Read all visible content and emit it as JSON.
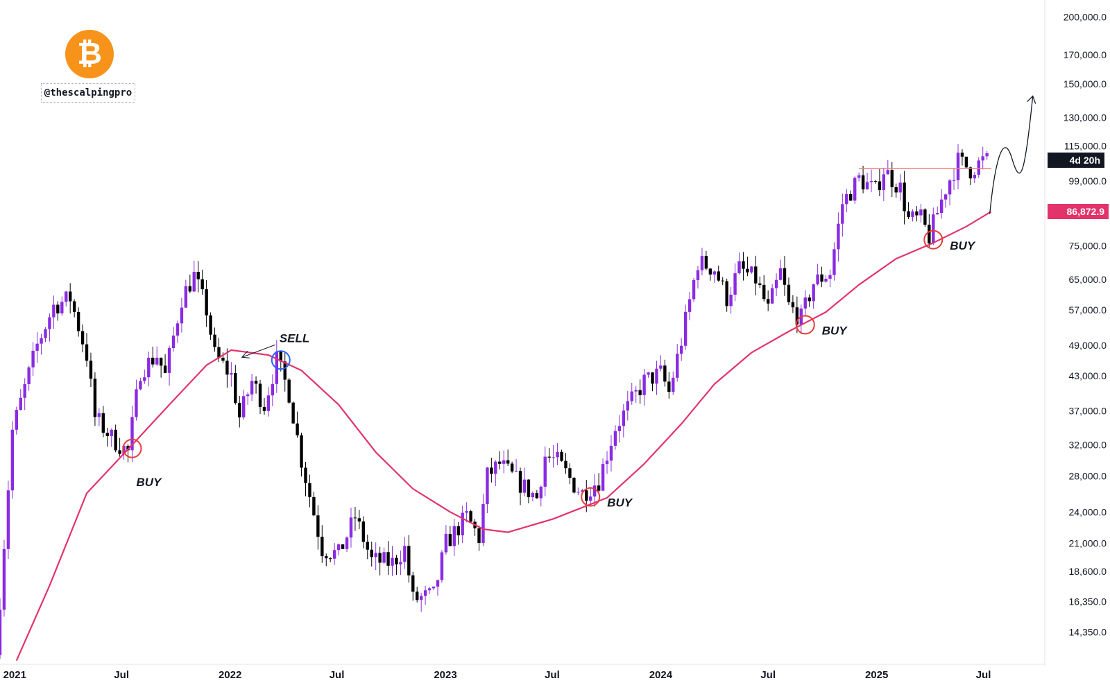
{
  "branding": {
    "handle": "@thescalpingpro",
    "logo_icon": "bitcoin-icon",
    "logo_glyph": "₿",
    "logo_color": "#f7931a"
  },
  "price_badges": {
    "countdown": "4d 20h",
    "moving_average": "86,872.9"
  },
  "chart_data": {
    "type": "candlestick",
    "y_scale": "log",
    "ylim": [
      12500,
      215000
    ],
    "xlim": [
      "2020-12-07",
      "2025-10-13"
    ],
    "y_ticks": [
      {
        "value": 200000,
        "label": "200,000.0"
      },
      {
        "value": 170000,
        "label": "170,000.0"
      },
      {
        "value": 150000,
        "label": "150,000.0"
      },
      {
        "value": 130000,
        "label": "130,000.0"
      },
      {
        "value": 115000,
        "label": "115,000.0"
      },
      {
        "value": 99000,
        "label": "99,000.0"
      },
      {
        "value": 75000,
        "label": "75,000.0"
      },
      {
        "value": 65000,
        "label": "65,000.0"
      },
      {
        "value": 57000,
        "label": "57,000.0"
      },
      {
        "value": 49000,
        "label": "49,000.0"
      },
      {
        "value": 43000,
        "label": "43,000.0"
      },
      {
        "value": 37000,
        "label": "37,000.0"
      },
      {
        "value": 32000,
        "label": "32,000.0"
      },
      {
        "value": 28000,
        "label": "28,000.0"
      },
      {
        "value": 24000,
        "label": "24,000.0"
      },
      {
        "value": 21000,
        "label": "21,000.0"
      },
      {
        "value": 18600,
        "label": "18,600.0"
      },
      {
        "value": 16350,
        "label": "16,350.0"
      },
      {
        "value": 14350,
        "label": "14,350.0"
      }
    ],
    "x_ticks": [
      {
        "date": "2021-01-01",
        "label": "2021",
        "bold": true
      },
      {
        "date": "2021-07-01",
        "label": "Jul",
        "bold": false
      },
      {
        "date": "2022-01-01",
        "label": "2022",
        "bold": true
      },
      {
        "date": "2022-07-01",
        "label": "Jul",
        "bold": false
      },
      {
        "date": "2023-01-01",
        "label": "2023",
        "bold": true
      },
      {
        "date": "2023-07-01",
        "label": "Jul",
        "bold": false
      },
      {
        "date": "2024-01-01",
        "label": "2024",
        "bold": true
      },
      {
        "date": "2024-07-01",
        "label": "Jul",
        "bold": false
      },
      {
        "date": "2025-01-01",
        "label": "2025",
        "bold": true
      },
      {
        "date": "2025-07-01",
        "label": "Jul",
        "bold": false
      }
    ],
    "colors": {
      "up": "#8a2be2",
      "down": "#000000",
      "ma": "#e2336b",
      "resistance": "#f08080",
      "buy_circle": "#e83a3a",
      "sell_circle": "#2962ff"
    },
    "price_path": [
      [
        "2020-12-07",
        13000
      ],
      [
        "2021-01-04",
        34000
      ],
      [
        "2021-02-15",
        49000
      ],
      [
        "2021-03-15",
        58000
      ],
      [
        "2021-04-12",
        60000
      ],
      [
        "2021-05-10",
        47000
      ],
      [
        "2021-05-24",
        36000
      ],
      [
        "2021-06-21",
        33000
      ],
      [
        "2021-07-19",
        31000
      ],
      [
        "2021-08-09",
        44000
      ],
      [
        "2021-09-06",
        47000
      ],
      [
        "2021-09-20",
        43000
      ],
      [
        "2021-10-18",
        60000
      ],
      [
        "2021-11-08",
        66000
      ],
      [
        "2021-11-29",
        57000
      ],
      [
        "2021-12-13",
        47000
      ],
      [
        "2022-01-10",
        43000
      ],
      [
        "2022-01-24",
        36000
      ],
      [
        "2022-02-14",
        42000
      ],
      [
        "2022-03-07",
        38000
      ],
      [
        "2022-03-28",
        46000
      ],
      [
        "2022-04-18",
        40000
      ],
      [
        "2022-05-09",
        30000
      ],
      [
        "2022-06-13",
        20500
      ],
      [
        "2022-07-11",
        20000
      ],
      [
        "2022-08-08",
        23500
      ],
      [
        "2022-09-05",
        19500
      ],
      [
        "2022-10-10",
        19300
      ],
      [
        "2022-10-31",
        20500
      ],
      [
        "2022-11-14",
        16500
      ],
      [
        "2022-12-19",
        16800
      ],
      [
        "2023-01-09",
        21000
      ],
      [
        "2023-02-13",
        23500
      ],
      [
        "2023-03-06",
        21500
      ],
      [
        "2023-03-20",
        28000
      ],
      [
        "2023-04-10",
        29500
      ],
      [
        "2023-05-08",
        27500
      ],
      [
        "2023-06-12",
        25500
      ],
      [
        "2023-06-26",
        30500
      ],
      [
        "2023-07-17",
        29800
      ],
      [
        "2023-08-14",
        27000
      ],
      [
        "2023-08-28",
        26000
      ],
      [
        "2023-09-25",
        27500
      ],
      [
        "2023-10-23",
        34500
      ],
      [
        "2023-11-13",
        37500
      ],
      [
        "2023-12-11",
        42000
      ],
      [
        "2024-01-08",
        43500
      ],
      [
        "2024-01-22",
        40000
      ],
      [
        "2024-02-12",
        50000
      ],
      [
        "2024-03-11",
        70000
      ],
      [
        "2024-04-08",
        68000
      ],
      [
        "2024-04-29",
        60000
      ],
      [
        "2024-05-20",
        68000
      ],
      [
        "2024-06-17",
        65000
      ],
      [
        "2024-07-08",
        57000
      ],
      [
        "2024-07-29",
        67000
      ],
      [
        "2024-08-12",
        58000
      ],
      [
        "2024-09-02",
        55000
      ],
      [
        "2024-09-23",
        64000
      ],
      [
        "2024-10-21",
        67000
      ],
      [
        "2024-11-11",
        90000
      ],
      [
        "2024-12-09",
        100000
      ],
      [
        "2025-01-06",
        95000
      ],
      [
        "2025-01-20",
        104000
      ],
      [
        "2025-02-17",
        96000
      ],
      [
        "2025-03-03",
        84000
      ],
      [
        "2025-03-24",
        84000
      ],
      [
        "2025-04-07",
        78000
      ],
      [
        "2025-05-05",
        96000
      ],
      [
        "2025-05-26",
        108000
      ],
      [
        "2025-06-16",
        104000
      ],
      [
        "2025-07-07",
        108000
      ]
    ],
    "moving_average": [
      [
        "2021-01-04",
        12700
      ],
      [
        "2021-03-01",
        17500
      ],
      [
        "2021-05-03",
        26000
      ],
      [
        "2021-07-19",
        32000
      ],
      [
        "2021-09-20",
        38000
      ],
      [
        "2021-11-22",
        45000
      ],
      [
        "2022-01-03",
        48000
      ],
      [
        "2022-03-07",
        47000
      ],
      [
        "2022-05-02",
        44000
      ],
      [
        "2022-07-04",
        38000
      ],
      [
        "2022-09-05",
        31000
      ],
      [
        "2022-11-07",
        26500
      ],
      [
        "2023-01-09",
        24000
      ],
      [
        "2023-03-06",
        22300
      ],
      [
        "2023-04-17",
        22000
      ],
      [
        "2023-07-03",
        23300
      ],
      [
        "2023-10-02",
        25500
      ],
      [
        "2023-12-04",
        29500
      ],
      [
        "2024-02-05",
        35000
      ],
      [
        "2024-04-01",
        41500
      ],
      [
        "2024-06-03",
        47500
      ],
      [
        "2024-08-05",
        52000
      ],
      [
        "2024-10-07",
        56500
      ],
      [
        "2024-12-02",
        63500
      ],
      [
        "2025-02-03",
        71000
      ],
      [
        "2025-04-07",
        76000
      ],
      [
        "2025-06-02",
        81500
      ],
      [
        "2025-07-14",
        86872.9
      ]
    ],
    "resistance_line": {
      "from": "2024-12-02",
      "to": "2025-07-14",
      "value": 104500
    },
    "annotations": [
      {
        "type": "buy",
        "label": "BUY",
        "date": "2021-07-19",
        "price": 31500
      },
      {
        "type": "sell",
        "label": "SELL",
        "date": "2022-03-28",
        "price": 46000
      },
      {
        "type": "buy",
        "label": "BUY",
        "date": "2023-09-04",
        "price": 25600
      },
      {
        "type": "buy",
        "label": "BUY",
        "date": "2024-09-02",
        "price": 53500
      },
      {
        "type": "buy",
        "label": "BUY",
        "date": "2025-04-07",
        "price": 77000
      }
    ]
  }
}
